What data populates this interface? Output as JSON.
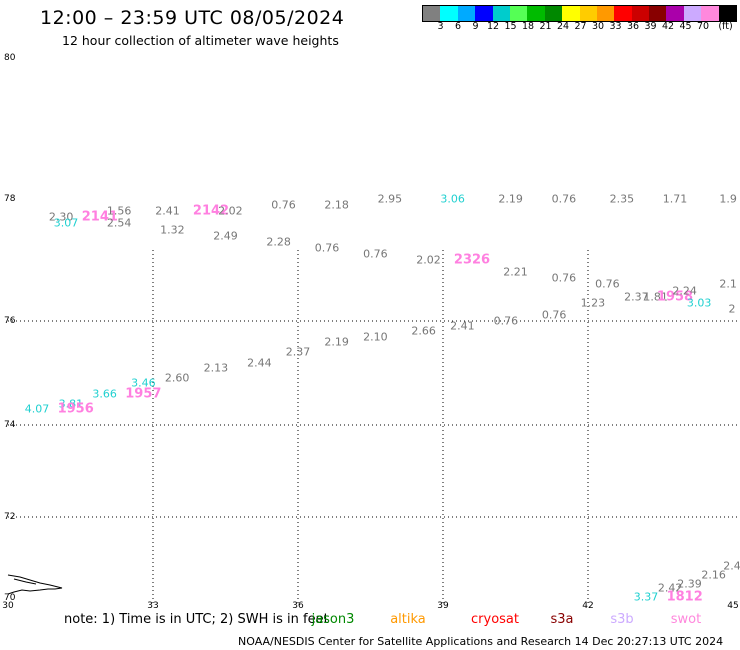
{
  "title": "12:00 – 23:59 UTC 08/05/2024",
  "subtitle": "12 hour collection of altimeter wave heights",
  "colorbar": {
    "colors": [
      "#808080",
      "#00ffff",
      "#00aaff",
      "#0000ff",
      "#00cccc",
      "#55ff55",
      "#00bb00",
      "#008800",
      "#ffff00",
      "#ffcc00",
      "#ff9900",
      "#ff0000",
      "#cc0000",
      "#880000",
      "#aa00aa",
      "#ccaaff",
      "#ff88dd",
      "#000000"
    ],
    "ticks": [
      "3",
      "6",
      "9",
      "12",
      "15",
      "18",
      "21",
      "24",
      "27",
      "30",
      "33",
      "36",
      "39",
      "42",
      "45",
      "70"
    ],
    "unit": "(ft)"
  },
  "map": {
    "lat_labels": [
      "80",
      "78",
      "76",
      "74",
      "72",
      "70"
    ],
    "lon_labels": [
      "30",
      "33",
      "36",
      "39",
      "42",
      "45"
    ],
    "lon_range": [
      30,
      45
    ],
    "lat_range": [
      70,
      80
    ]
  },
  "wave_labels": [
    {
      "text": "2.30",
      "color": "#777777",
      "big": false,
      "lon": 31.1,
      "lat": 77.7
    },
    {
      "text": "3.07",
      "color": "#20d0d0",
      "big": false,
      "lon": 31.2,
      "lat": 77.6
    },
    {
      "text": "2141",
      "color": "#ff80e0",
      "big": true,
      "lon": 31.9,
      "lat": 77.7
    },
    {
      "text": "1.56",
      "color": "#777777",
      "big": false,
      "lon": 32.3,
      "lat": 77.8
    },
    {
      "text": "2.54",
      "color": "#777777",
      "big": false,
      "lon": 32.3,
      "lat": 77.6
    },
    {
      "text": "2.41",
      "color": "#777777",
      "big": false,
      "lon": 33.3,
      "lat": 77.8
    },
    {
      "text": "1.32",
      "color": "#777777",
      "big": false,
      "lon": 33.4,
      "lat": 77.5
    },
    {
      "text": "2142",
      "color": "#ff80e0",
      "big": true,
      "lon": 34.2,
      "lat": 77.8
    },
    {
      "text": "2.02",
      "color": "#777777",
      "big": false,
      "lon": 34.6,
      "lat": 77.8
    },
    {
      "text": "2.49",
      "color": "#777777",
      "big": false,
      "lon": 34.5,
      "lat": 77.4
    },
    {
      "text": "0.76",
      "color": "#777777",
      "big": false,
      "lon": 35.7,
      "lat": 77.9
    },
    {
      "text": "2.28",
      "color": "#777777",
      "big": false,
      "lon": 35.6,
      "lat": 77.3
    },
    {
      "text": "2.18",
      "color": "#777777",
      "big": false,
      "lon": 36.8,
      "lat": 77.9
    },
    {
      "text": "0.76",
      "color": "#777777",
      "big": false,
      "lon": 36.6,
      "lat": 77.2
    },
    {
      "text": "2.95",
      "color": "#777777",
      "big": false,
      "lon": 37.9,
      "lat": 78.0
    },
    {
      "text": "0.76",
      "color": "#777777",
      "big": false,
      "lon": 37.6,
      "lat": 77.1
    },
    {
      "text": "3.06",
      "color": "#20d0d0",
      "big": false,
      "lon": 39.2,
      "lat": 78.0
    },
    {
      "text": "2.02",
      "color": "#777777",
      "big": false,
      "lon": 38.7,
      "lat": 77.0
    },
    {
      "text": "2326",
      "color": "#ff80e0",
      "big": true,
      "lon": 39.6,
      "lat": 77.0
    },
    {
      "text": "2.19",
      "color": "#777777",
      "big": false,
      "lon": 40.4,
      "lat": 78.0
    },
    {
      "text": "2.21",
      "color": "#777777",
      "big": false,
      "lon": 40.5,
      "lat": 76.8
    },
    {
      "text": "0.76",
      "color": "#777777",
      "big": false,
      "lon": 41.5,
      "lat": 78.0
    },
    {
      "text": "0.76",
      "color": "#777777",
      "big": false,
      "lon": 41.5,
      "lat": 76.7
    },
    {
      "text": "2.35",
      "color": "#777777",
      "big": false,
      "lon": 42.7,
      "lat": 78.0
    },
    {
      "text": "0.76",
      "color": "#777777",
      "big": false,
      "lon": 42.4,
      "lat": 76.6
    },
    {
      "text": "1.23",
      "color": "#777777",
      "big": false,
      "lon": 42.1,
      "lat": 76.3
    },
    {
      "text": "2.37",
      "color": "#777777",
      "big": false,
      "lon": 43.0,
      "lat": 76.4
    },
    {
      "text": "1.81",
      "color": "#777777",
      "big": false,
      "lon": 43.4,
      "lat": 76.4
    },
    {
      "text": "1958",
      "color": "#ff80e0",
      "big": true,
      "lon": 43.8,
      "lat": 76.4
    },
    {
      "text": "2.24",
      "color": "#777777",
      "big": false,
      "lon": 44.0,
      "lat": 76.5
    },
    {
      "text": "3.03",
      "color": "#20d0d0",
      "big": false,
      "lon": 44.3,
      "lat": 76.3
    },
    {
      "text": "1.71",
      "color": "#777777",
      "big": false,
      "lon": 43.8,
      "lat": 78.0
    },
    {
      "text": "1.9",
      "color": "#777777",
      "big": false,
      "lon": 44.9,
      "lat": 78.0
    },
    {
      "text": "2.1",
      "color": "#777777",
      "big": false,
      "lon": 44.9,
      "lat": 76.6
    },
    {
      "text": "2",
      "color": "#777777",
      "big": false,
      "lon": 45.0,
      "lat": 76.2
    },
    {
      "text": "0.76",
      "color": "#777777",
      "big": false,
      "lon": 41.3,
      "lat": 76.1
    },
    {
      "text": "0.76",
      "color": "#777777",
      "big": false,
      "lon": 40.3,
      "lat": 76.0
    },
    {
      "text": "2.41",
      "color": "#777777",
      "big": false,
      "lon": 39.4,
      "lat": 75.9
    },
    {
      "text": "2.66",
      "color": "#777777",
      "big": false,
      "lon": 38.6,
      "lat": 75.8
    },
    {
      "text": "2.10",
      "color": "#777777",
      "big": false,
      "lon": 37.6,
      "lat": 75.7
    },
    {
      "text": "2.19",
      "color": "#777777",
      "big": false,
      "lon": 36.8,
      "lat": 75.6
    },
    {
      "text": "2.37",
      "color": "#777777",
      "big": false,
      "lon": 36.0,
      "lat": 75.4
    },
    {
      "text": "2.44",
      "color": "#777777",
      "big": false,
      "lon": 35.2,
      "lat": 75.2
    },
    {
      "text": "2.13",
      "color": "#777777",
      "big": false,
      "lon": 34.3,
      "lat": 75.1
    },
    {
      "text": "2.60",
      "color": "#777777",
      "big": false,
      "lon": 33.5,
      "lat": 74.9
    },
    {
      "text": "3.46",
      "color": "#20d0d0",
      "big": false,
      "lon": 32.8,
      "lat": 74.8
    },
    {
      "text": "1957",
      "color": "#ff80e0",
      "big": true,
      "lon": 32.8,
      "lat": 74.6
    },
    {
      "text": "3.66",
      "color": "#20d0d0",
      "big": false,
      "lon": 32.0,
      "lat": 74.6
    },
    {
      "text": "3.81",
      "color": "#20d0d0",
      "big": false,
      "lon": 31.3,
      "lat": 74.4
    },
    {
      "text": "1956",
      "color": "#ff80e0",
      "big": true,
      "lon": 31.4,
      "lat": 74.3
    },
    {
      "text": "4.07",
      "color": "#20d0d0",
      "big": false,
      "lon": 30.6,
      "lat": 74.3
    },
    {
      "text": "2.4",
      "color": "#777777",
      "big": false,
      "lon": 45.0,
      "lat": 70.9
    },
    {
      "text": "2.16",
      "color": "#777777",
      "big": false,
      "lon": 44.6,
      "lat": 70.7
    },
    {
      "text": "2.39",
      "color": "#777777",
      "big": false,
      "lon": 44.1,
      "lat": 70.5
    },
    {
      "text": "2.42",
      "color": "#777777",
      "big": false,
      "lon": 43.7,
      "lat": 70.4
    },
    {
      "text": "1812",
      "color": "#ff80e0",
      "big": true,
      "lon": 44.0,
      "lat": 70.2
    },
    {
      "text": "3.37",
      "color": "#20d0d0",
      "big": false,
      "lon": 43.2,
      "lat": 70.2
    }
  ],
  "note": "note: 1) Time is in UTC; 2) SWH is in feet",
  "legend": [
    {
      "name": "jason3",
      "color": "#008800"
    },
    {
      "name": "altika",
      "color": "#ff9900"
    },
    {
      "name": "cryosat",
      "color": "#ff0000"
    },
    {
      "name": "s3a",
      "color": "#880000"
    },
    {
      "name": "s3b",
      "color": "#ccaaff"
    },
    {
      "name": "swot",
      "color": "#ff88dd"
    }
  ],
  "footer": "NOAA/NESDIS Center for Satellite Applications and Research   14 Dec 20:27:13 UTC 2024"
}
